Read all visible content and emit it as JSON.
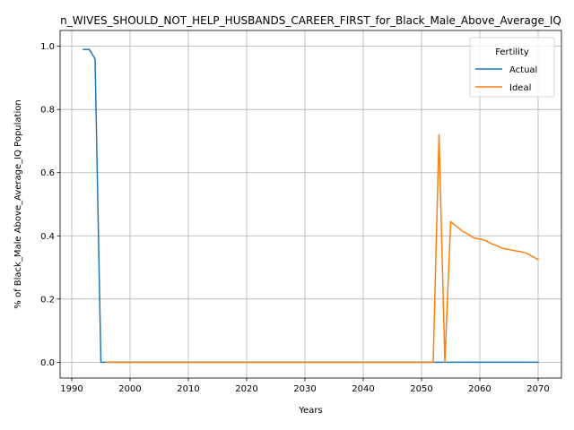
{
  "chart_data": {
    "type": "line",
    "title": "n_WIVES_SHOULD_NOT_HELP_HUSBANDS_CAREER_FIRST_for_Black_Male_Above_Average_IQ",
    "xlabel": "Years",
    "ylabel": "% of Black_Male Above_Average_IQ Population",
    "xlim": [
      1988,
      2074
    ],
    "ylim": [
      -0.05,
      1.05
    ],
    "xticks": [
      1990,
      2000,
      2010,
      2020,
      2030,
      2040,
      2050,
      2060,
      2070
    ],
    "yticks": [
      0.0,
      0.2,
      0.4,
      0.6,
      0.8,
      1.0
    ],
    "xtick_labels": [
      "1990",
      "2000",
      "2010",
      "2020",
      "2030",
      "2040",
      "2050",
      "2060",
      "2070"
    ],
    "ytick_labels": [
      "0.0",
      "0.2",
      "0.4",
      "0.6",
      "0.8",
      "1.0"
    ],
    "grid": true,
    "legend": {
      "title": "Fertility",
      "placement": "top-right"
    },
    "series": [
      {
        "name": "Actual",
        "color": "#1f77b4",
        "x": [
          1992,
          1993,
          1994,
          1995,
          1996,
          2000,
          2010,
          2020,
          2030,
          2040,
          2050,
          2060,
          2070
        ],
        "y": [
          0.99,
          0.99,
          0.96,
          0.0,
          0.0,
          0.0,
          0.0,
          0.0,
          0.0,
          0.0,
          0.0,
          0.0,
          0.0
        ]
      },
      {
        "name": "Ideal",
        "color": "#ff7f0e",
        "x": [
          1996,
          2000,
          2010,
          2020,
          2030,
          2040,
          2050,
          2052,
          2053,
          2054,
          2055,
          2056,
          2057,
          2058,
          2059,
          2060,
          2061,
          2062,
          2063,
          2064,
          2065,
          2066,
          2067,
          2068,
          2069,
          2070
        ],
        "y": [
          0.0,
          0.0,
          0.0,
          0.0,
          0.0,
          0.0,
          0.0,
          0.0,
          0.72,
          0.0,
          0.445,
          0.43,
          0.415,
          0.405,
          0.393,
          0.39,
          0.385,
          0.375,
          0.368,
          0.36,
          0.357,
          0.353,
          0.35,
          0.345,
          0.335,
          0.325
        ]
      }
    ]
  }
}
